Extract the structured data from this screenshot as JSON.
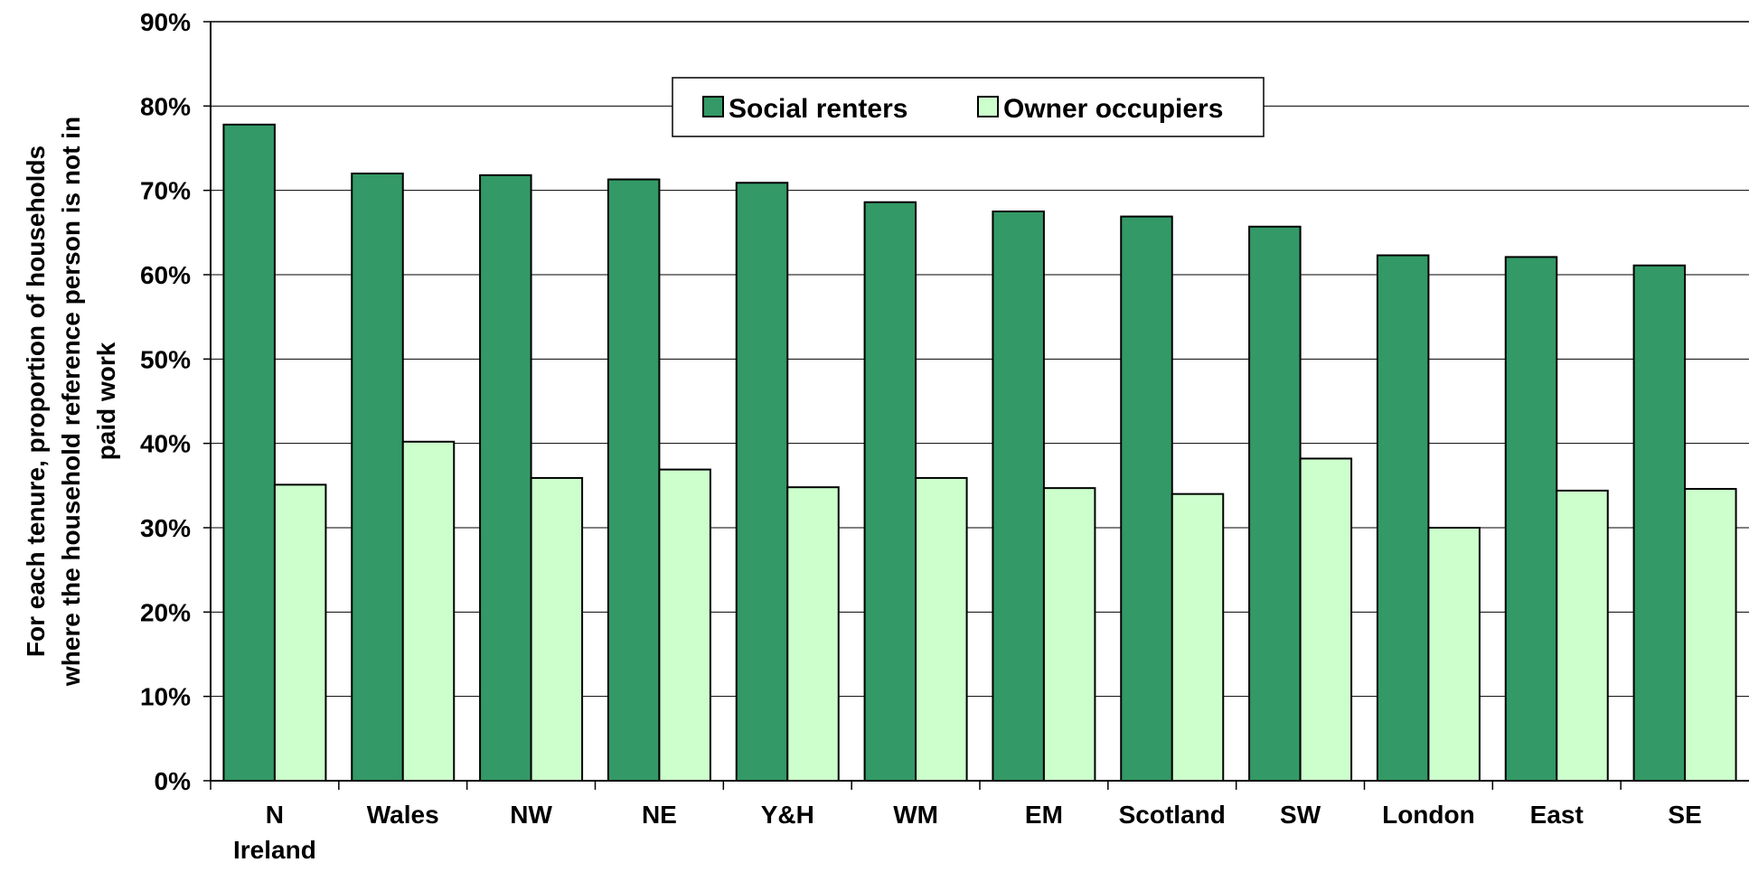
{
  "chart_data": {
    "type": "bar",
    "categories": [
      "N Ireland",
      "Wales",
      "NW",
      "NE",
      "Y&H",
      "WM",
      "EM",
      "Scotland",
      "SW",
      "London",
      "East",
      "SE"
    ],
    "series": [
      {
        "name": "Social renters",
        "color": "#339966",
        "values": [
          77.8,
          72.0,
          71.8,
          71.3,
          70.9,
          68.6,
          67.5,
          66.9,
          65.7,
          62.3,
          62.1,
          61.1
        ]
      },
      {
        "name": "Owner occupiers",
        "color": "#CCFFCC",
        "values": [
          35.1,
          40.2,
          35.9,
          36.9,
          34.8,
          35.9,
          34.7,
          34.0,
          38.2,
          30.0,
          34.4,
          34.6
        ]
      }
    ],
    "ylabel": "For each tenure, proportion of households where the household reference person is not in paid work",
    "ylabel_lines": [
      "For each tenure, proportion of households",
      "where the household reference person is not in",
      "paid work"
    ],
    "ylim": [
      0,
      90
    ],
    "yticks": [
      "0%",
      "10%",
      "20%",
      "30%",
      "40%",
      "50%",
      "60%",
      "70%",
      "80%",
      "90%"
    ],
    "grid": true,
    "legend_position": "top-center"
  }
}
